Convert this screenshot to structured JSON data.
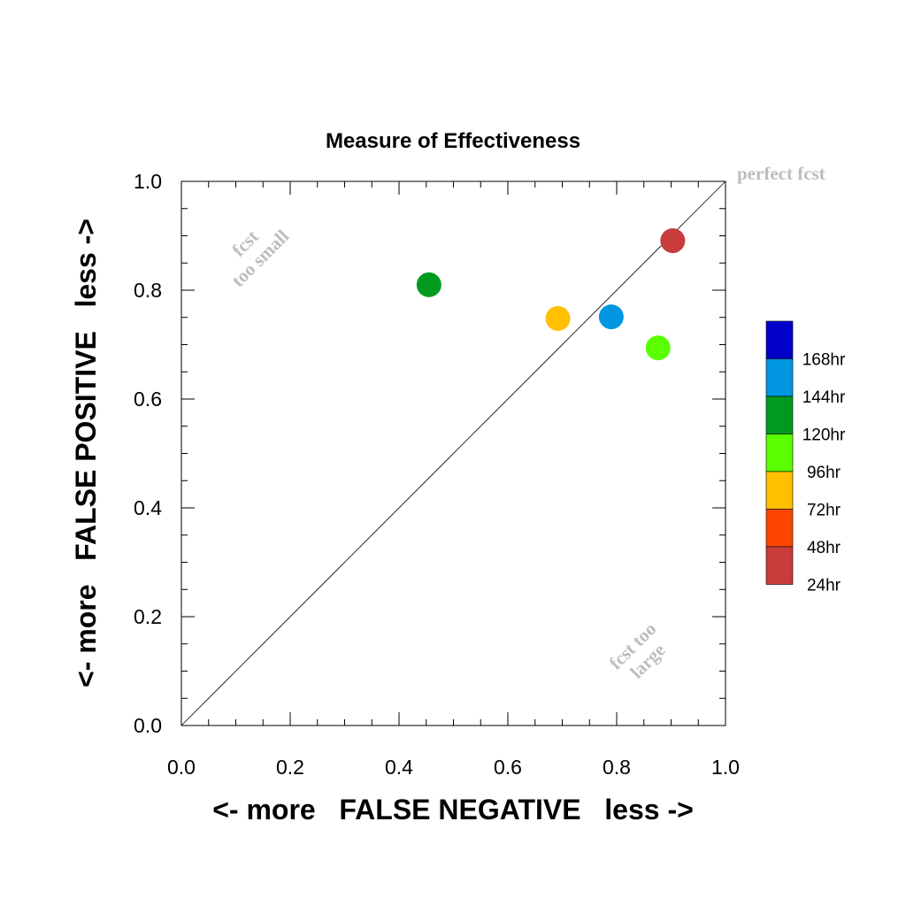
{
  "chart_data": {
    "type": "scatter",
    "title": "Measure of Effectiveness",
    "xlabel": "<- more   FALSE NEGATIVE   less ->",
    "ylabel": "<- more   FALSE POSITIVE   less ->",
    "xlim": [
      0.0,
      1.0
    ],
    "ylim": [
      0.0,
      1.0
    ],
    "x_ticks": [
      "0.0",
      "0.2",
      "0.4",
      "0.6",
      "0.8",
      "1.0"
    ],
    "y_ticks": [
      "0.0",
      "0.2",
      "0.4",
      "0.6",
      "0.8",
      "1.0"
    ],
    "grid": false,
    "reference_line": {
      "from": [
        0,
        0
      ],
      "to": [
        1,
        1
      ],
      "label": "perfect fcst"
    },
    "annotations": {
      "upper_left": [
        "fcst",
        "too small"
      ],
      "lower_right": [
        "fcst too",
        "large"
      ]
    },
    "legend_position": "right",
    "legend": [
      {
        "label": "168hr",
        "color": "#0000c8"
      },
      {
        "label": "144hr",
        "color": "#0096e1"
      },
      {
        "label": "120hr",
        "color": "#009b1e"
      },
      {
        "label": "96hr",
        "color": "#5aff00"
      },
      {
        "label": "72hr",
        "color": "#ffc000"
      },
      {
        "label": "48hr",
        "color": "#ff4600"
      },
      {
        "label": "24hr",
        "color": "#c83c3c"
      }
    ],
    "points": [
      {
        "series": "120hr",
        "x": 0.455,
        "y": 0.81,
        "color": "#009b1e"
      },
      {
        "series": "72hr",
        "x": 0.692,
        "y": 0.748,
        "color": "#ffc000"
      },
      {
        "series": "144hr",
        "x": 0.79,
        "y": 0.751,
        "color": "#0096e1"
      },
      {
        "series": "96hr",
        "x": 0.876,
        "y": 0.694,
        "color": "#5aff00"
      },
      {
        "series": "24hr",
        "x": 0.903,
        "y": 0.891,
        "color": "#c83c3c"
      }
    ]
  }
}
